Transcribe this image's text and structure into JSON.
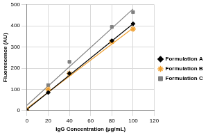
{
  "chart_data": {
    "type": "scatter",
    "x_label": "IgG Concentration (µg/mL)",
    "y_label": "Fluorescence (AU)",
    "x": [
      0,
      20,
      40,
      80,
      100
    ],
    "series": [
      {
        "name": "Formulation A",
        "color": "#000000",
        "marker": "diamond",
        "values": [
          0,
          85,
          175,
          330,
          410
        ],
        "trend": [
          5,
          410
        ]
      },
      {
        "name": "Formulation B",
        "color": "#f0a030",
        "marker": "star",
        "values": [
          0,
          100,
          175,
          325,
          385
        ],
        "trend": [
          10,
          390
        ]
      },
      {
        "name": "Formulation C",
        "color": "#808080",
        "marker": "square",
        "values": [
          0,
          120,
          230,
          395,
          465
        ],
        "trend": [
          25,
          480
        ]
      }
    ],
    "trend_x": [
      0,
      100
    ],
    "xlim": [
      0,
      120
    ],
    "xticks": [
      0,
      20,
      40,
      60,
      80,
      100,
      120
    ],
    "ylim": [
      0,
      500
    ],
    "yticks": [
      0,
      100,
      200,
      300,
      400,
      500
    ],
    "grid": true,
    "legend": "right"
  }
}
